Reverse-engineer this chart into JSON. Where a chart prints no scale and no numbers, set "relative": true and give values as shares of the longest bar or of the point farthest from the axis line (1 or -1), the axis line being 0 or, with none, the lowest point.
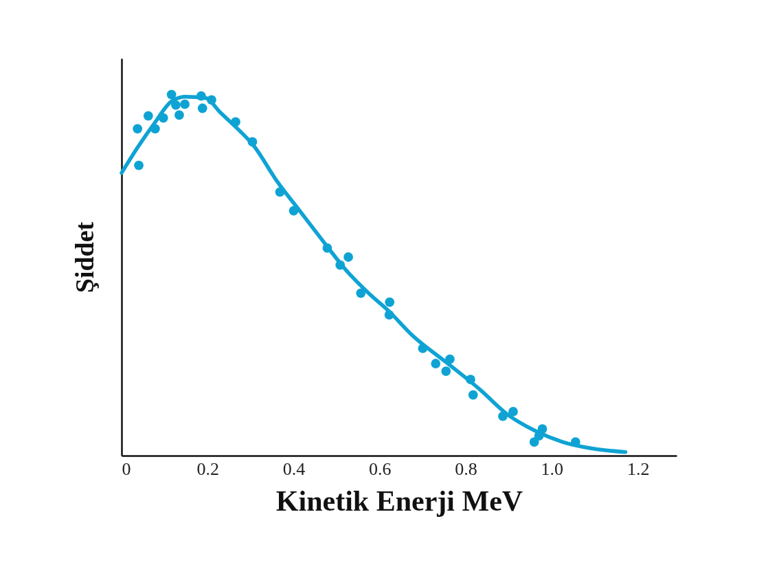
{
  "chart_data": {
    "type": "scatter",
    "xlabel": "Kinetik Enerji MeV",
    "ylabel": "Şiddet",
    "relative": true,
    "xlim": [
      0,
      1.29
    ],
    "xticks": [
      0,
      0.2,
      0.4,
      0.6,
      0.8,
      {
        "value": 1,
        "label": "1.0"
      },
      1.2
    ],
    "grid": false,
    "series": [
      {
        "type": "line",
        "marker": "none",
        "line_style": "solid",
        "color": "#0fa3d4",
        "x": [
          0,
          0.037,
          0.076,
          0.116,
          0.148,
          0.196,
          0.228,
          0.268,
          0.308,
          0.36,
          0.414,
          0.467,
          0.52,
          0.574,
          0.623,
          0.674,
          0.754,
          0.833,
          0.897,
          0.961,
          1.025,
          1.088,
          1.171
        ],
        "values": [
          0.783,
          0.853,
          0.92,
          0.981,
          0.994,
          0.99,
          0.952,
          0.907,
          0.857,
          0.762,
          0.678,
          0.596,
          0.516,
          0.45,
          0.398,
          0.335,
          0.259,
          0.183,
          0.114,
          0.069,
          0.038,
          0.021,
          0.01
        ]
      },
      {
        "marker": "circle",
        "color": "#0fa3d4",
        "x": [
          0.037,
          0.04,
          0.062,
          0.078,
          0.097,
          0.116,
          0.126,
          0.134,
          0.147,
          0.185,
          0.188,
          0.209,
          0.265,
          0.304,
          0.368,
          0.4,
          0.478,
          0.508,
          0.527,
          0.556,
          0.623,
          0.622,
          0.7,
          0.73,
          0.763,
          0.754,
          0.811,
          0.817,
          0.886,
          0.91,
          0.959,
          0.97,
          0.978,
          1.055
        ],
        "values": [
          0.905,
          0.804,
          0.941,
          0.905,
          0.935,
          1,
          0.971,
          0.943,
          0.973,
          0.996,
          0.962,
          0.985,
          0.924,
          0.869,
          0.73,
          0.678,
          0.575,
          0.528,
          0.55,
          0.45,
          0.425,
          0.39,
          0.297,
          0.255,
          0.267,
          0.234,
          0.211,
          0.168,
          0.109,
          0.122,
          0.038,
          0.055,
          0.074,
          0.038
        ]
      }
    ]
  }
}
